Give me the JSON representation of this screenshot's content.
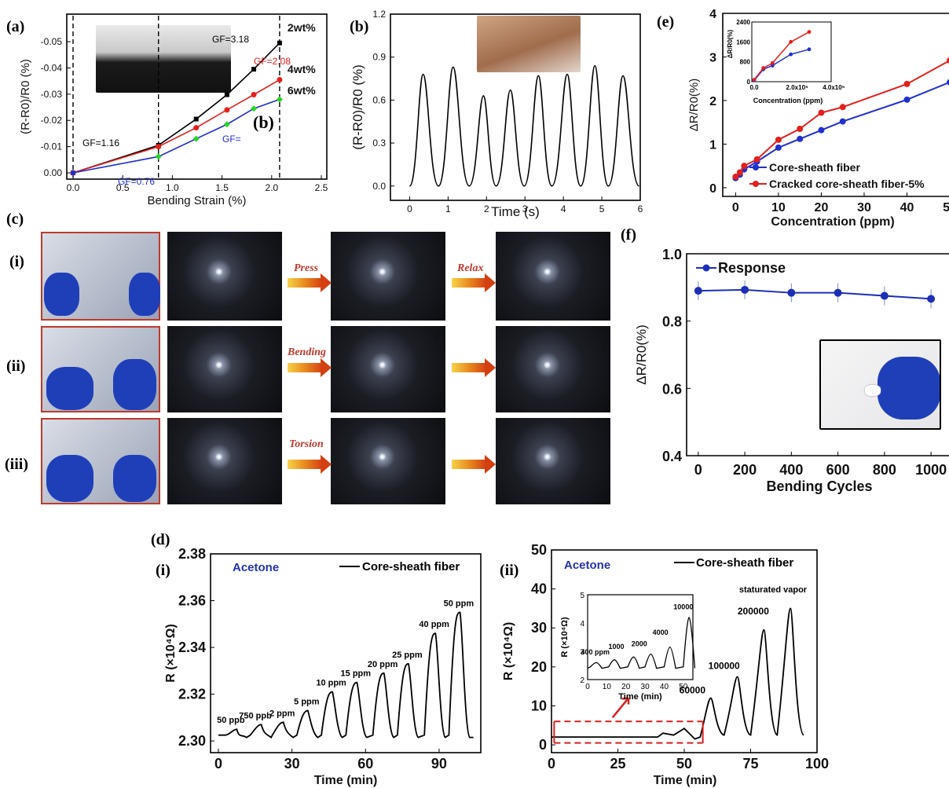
{
  "panels": {
    "a": "(a)",
    "b": "(b)",
    "b_inset": "(b)",
    "c": "(c)",
    "d": "(d)",
    "e": "(e)",
    "f": "(f)"
  },
  "rows_c": [
    "(i)",
    "(ii)",
    "(iii)"
  ],
  "arrows_c": {
    "press": "Press",
    "relax": "Relax",
    "bending": "Bending",
    "torsion": "Torsion"
  },
  "colors": {
    "black": "#000000",
    "red": "#e3201c",
    "blue": "#1f2fd0",
    "green": "#26d626",
    "navy": "#1c2fb8",
    "dash": "#d62020"
  },
  "chart_data": [
    {
      "id": "a",
      "type": "line",
      "xlabel": "Bending Strain (%)",
      "ylabel": "(R-R0)/R0 (%)",
      "xlim": [
        0,
        2.5
      ],
      "ylim": [
        0,
        -0.055
      ],
      "xticks": [
        "0.0",
        "0.5",
        "1.0",
        "1.5",
        "2.0",
        "2.5"
      ],
      "yticks": [
        "0.00",
        "-0.01",
        "-0.02",
        "-0.03",
        "-0.04",
        "-0.05"
      ],
      "series": [
        {
          "name": "2wt%",
          "color": "#000000",
          "x": [
            0,
            0.86,
            1.24,
            1.55,
            1.82,
            2.08
          ],
          "y": [
            0,
            -0.0105,
            -0.0205,
            -0.0298,
            -0.0395,
            -0.0495
          ]
        },
        {
          "name": "4wt%",
          "color": "#e3201c",
          "x": [
            0,
            0.86,
            1.24,
            1.55,
            1.82,
            2.08
          ],
          "y": [
            0,
            -0.01,
            -0.0172,
            -0.024,
            -0.0298,
            -0.0355
          ]
        },
        {
          "name": "6wt%",
          "color": "#1f2fd0",
          "x": [
            0,
            0.86,
            1.24,
            1.55,
            1.82,
            2.08
          ],
          "y": [
            0,
            -0.0062,
            -0.013,
            -0.0185,
            -0.0245,
            -0.028
          ]
        }
      ],
      "annotations": [
        "GF=3.18",
        "GF=2.08",
        "GF=1.16",
        "GF=0.76",
        "GF="
      ]
    },
    {
      "id": "b",
      "type": "line",
      "xlabel": "Time (s)",
      "ylabel": "(R-R0)/R0 (%)",
      "xlim": [
        -0.5,
        6
      ],
      "ylim": [
        -0.1,
        1.2
      ],
      "xticks": [
        "0",
        "1",
        "2",
        "3",
        "4",
        "5",
        "6"
      ],
      "yticks": [
        "0.0",
        "0.3",
        "0.6",
        "0.9",
        "1.2"
      ],
      "peaks_t": [
        0.35,
        1.13,
        1.92,
        2.62,
        3.35,
        4.1,
        4.82,
        5.55
      ],
      "peaks_v": [
        0.78,
        0.83,
        0.63,
        0.67,
        0.77,
        0.78,
        0.84,
        0.77
      ],
      "troughs_t": [
        0,
        0.75,
        1.55,
        2.25,
        2.98,
        3.7,
        4.45,
        5.17,
        5.97
      ],
      "troughs_v": [
        0.0,
        0.0,
        0.0,
        0.0,
        0.0,
        0.0,
        0.0,
        0.0,
        0.0
      ]
    },
    {
      "id": "e",
      "type": "line",
      "xlabel": "Concentration (ppm)",
      "ylabel": "ΔR/R0(%)",
      "xlim": [
        -3,
        52
      ],
      "ylim": [
        -0.2,
        4
      ],
      "xticks": [
        "0",
        "10",
        "20",
        "30",
        "40",
        "50"
      ],
      "yticks": [
        "0",
        "1",
        "2",
        "3",
        "4"
      ],
      "series": [
        {
          "name": "Core-sheath fiber",
          "color": "#1f2fd0",
          "x": [
            0,
            1,
            2,
            5,
            10,
            15,
            20,
            25,
            40,
            50
          ],
          "y": [
            0.22,
            0.3,
            0.42,
            0.6,
            0.92,
            1.12,
            1.32,
            1.52,
            2.02,
            2.42
          ]
        },
        {
          "name": "Cracked core-sheath fiber-5%",
          "color": "#e3201c",
          "x": [
            0,
            1,
            2,
            5,
            10,
            15,
            20,
            25,
            40,
            50
          ],
          "y": [
            0.25,
            0.35,
            0.5,
            0.65,
            1.1,
            1.35,
            1.72,
            1.85,
            2.38,
            2.92
          ]
        }
      ],
      "inset": {
        "xlabel": "Concentration (ppm)",
        "ylabel": "ΔR/R0(%)",
        "xticks": [
          "0.0",
          "2.0x10⁵",
          "4.0x10⁵"
        ],
        "yticks": [
          "0",
          "800",
          "1600",
          "2400"
        ],
        "series": [
          {
            "color": "#1f2fd0",
            "x": [
              0,
              0.5,
              1,
              2,
              3
            ],
            "y": [
              50,
              500,
              650,
              1100,
              1300
            ]
          },
          {
            "color": "#e3201c",
            "x": [
              0,
              0.5,
              1,
              2,
              3
            ],
            "y": [
              80,
              550,
              750,
              1600,
              2000
            ]
          }
        ]
      }
    },
    {
      "id": "f",
      "type": "line",
      "xlabel": "Bending Cycles",
      "ylabel": "ΔR/R0(%)",
      "xlim": [
        -50,
        1030
      ],
      "ylim": [
        0.4,
        1.0
      ],
      "xticks": [
        "0",
        "200",
        "400",
        "600",
        "800",
        "1000"
      ],
      "yticks": [
        "0.4",
        "0.6",
        "0.8",
        "1.0"
      ],
      "series": [
        {
          "name": "Response",
          "color": "#1c2fb8",
          "x": [
            0,
            200,
            400,
            600,
            800,
            1000
          ],
          "y": [
            0.89,
            0.893,
            0.884,
            0.884,
            0.875,
            0.866
          ]
        }
      ]
    },
    {
      "id": "d_i",
      "type": "line",
      "xlabel": "Time (min)",
      "ylabel": "R (×10⁴Ω)",
      "xlim": [
        0,
        107
      ],
      "ylim": [
        2.295,
        2.38
      ],
      "xticks": [
        "0",
        "30",
        "60",
        "90"
      ],
      "yticks": [
        "2.30",
        "2.32",
        "2.34",
        "2.36",
        "2.38"
      ],
      "legend": "Core-sheath fiber",
      "tag": "Acetone",
      "labels": [
        "50 ppb",
        "750 ppb",
        "2 ppm",
        "5 ppm",
        "10 ppm",
        "15 ppm",
        "20 ppm",
        "25 ppm",
        "40 ppm",
        "50 ppm"
      ],
      "peaks": [
        2.305,
        2.307,
        2.308,
        2.313,
        2.321,
        2.325,
        2.329,
        2.333,
        2.346,
        2.355
      ]
    },
    {
      "id": "d_ii",
      "type": "line",
      "xlabel": "Time (min)",
      "ylabel": "R (×10⁴Ω)",
      "xlim": [
        0,
        100
      ],
      "ylim": [
        -2,
        50
      ],
      "xticks": [
        "0",
        "25",
        "50",
        "75",
        "100"
      ],
      "yticks": [
        "0",
        "10",
        "20",
        "30",
        "40",
        "50"
      ],
      "legend": "Core-sheath fiber",
      "tag": "Acetone",
      "note": "staturated vapor",
      "labels": [
        "60000",
        "100000",
        "200000"
      ],
      "peaks": [
        12,
        17.5,
        29.5,
        35
      ],
      "inset": {
        "xlabel": "Time (min)",
        "ylabel": "R (×10⁴Ω)",
        "xticks": [
          "0",
          "10",
          "20",
          "30",
          "40",
          "50"
        ],
        "yticks": [
          "2",
          "3",
          "4",
          "5"
        ],
        "labels": [
          "400 ppm",
          "1000",
          "2000",
          "4000",
          "10000"
        ]
      }
    }
  ]
}
